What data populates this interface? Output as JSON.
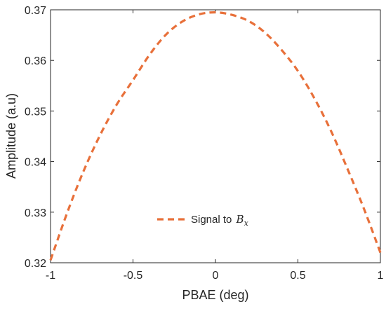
{
  "chart_data": {
    "type": "line",
    "title": "",
    "xlabel": "PBAE (deg)",
    "ylabel": "Amplitude (a.u)",
    "xlim": [
      -1,
      1
    ],
    "ylim": [
      0.32,
      0.37
    ],
    "x_ticks": [
      -1,
      -0.5,
      0,
      0.5,
      1
    ],
    "x_tick_labels": [
      "-1",
      "-0.5",
      "0",
      "0.5",
      "1"
    ],
    "y_ticks": [
      0.32,
      0.33,
      0.34,
      0.35,
      0.36,
      0.37
    ],
    "y_tick_labels": [
      "0.32",
      "0.33",
      "0.34",
      "0.35",
      "0.36",
      "0.37"
    ],
    "grid": false,
    "legend": {
      "position": "bottom-center",
      "entries": [
        {
          "prefix": "Signal to ",
          "symbol": "B",
          "subscript": "x"
        }
      ]
    },
    "series": [
      {
        "name": "Signal to Bx",
        "color": "#E8703A",
        "line_style": "dashed",
        "x": [
          -1.0,
          -0.9,
          -0.8,
          -0.7,
          -0.6,
          -0.5,
          -0.4,
          -0.3,
          -0.2,
          -0.1,
          0.0,
          0.1,
          0.2,
          0.3,
          0.4,
          0.5,
          0.6,
          0.7,
          0.8,
          0.9,
          1.0
        ],
        "y": [
          0.3205,
          0.3298,
          0.3381,
          0.3452,
          0.3512,
          0.3561,
          0.3611,
          0.3651,
          0.3677,
          0.3691,
          0.3695,
          0.369,
          0.3678,
          0.3655,
          0.3621,
          0.3579,
          0.3525,
          0.3461,
          0.3386,
          0.3307,
          0.322
        ]
      }
    ]
  }
}
